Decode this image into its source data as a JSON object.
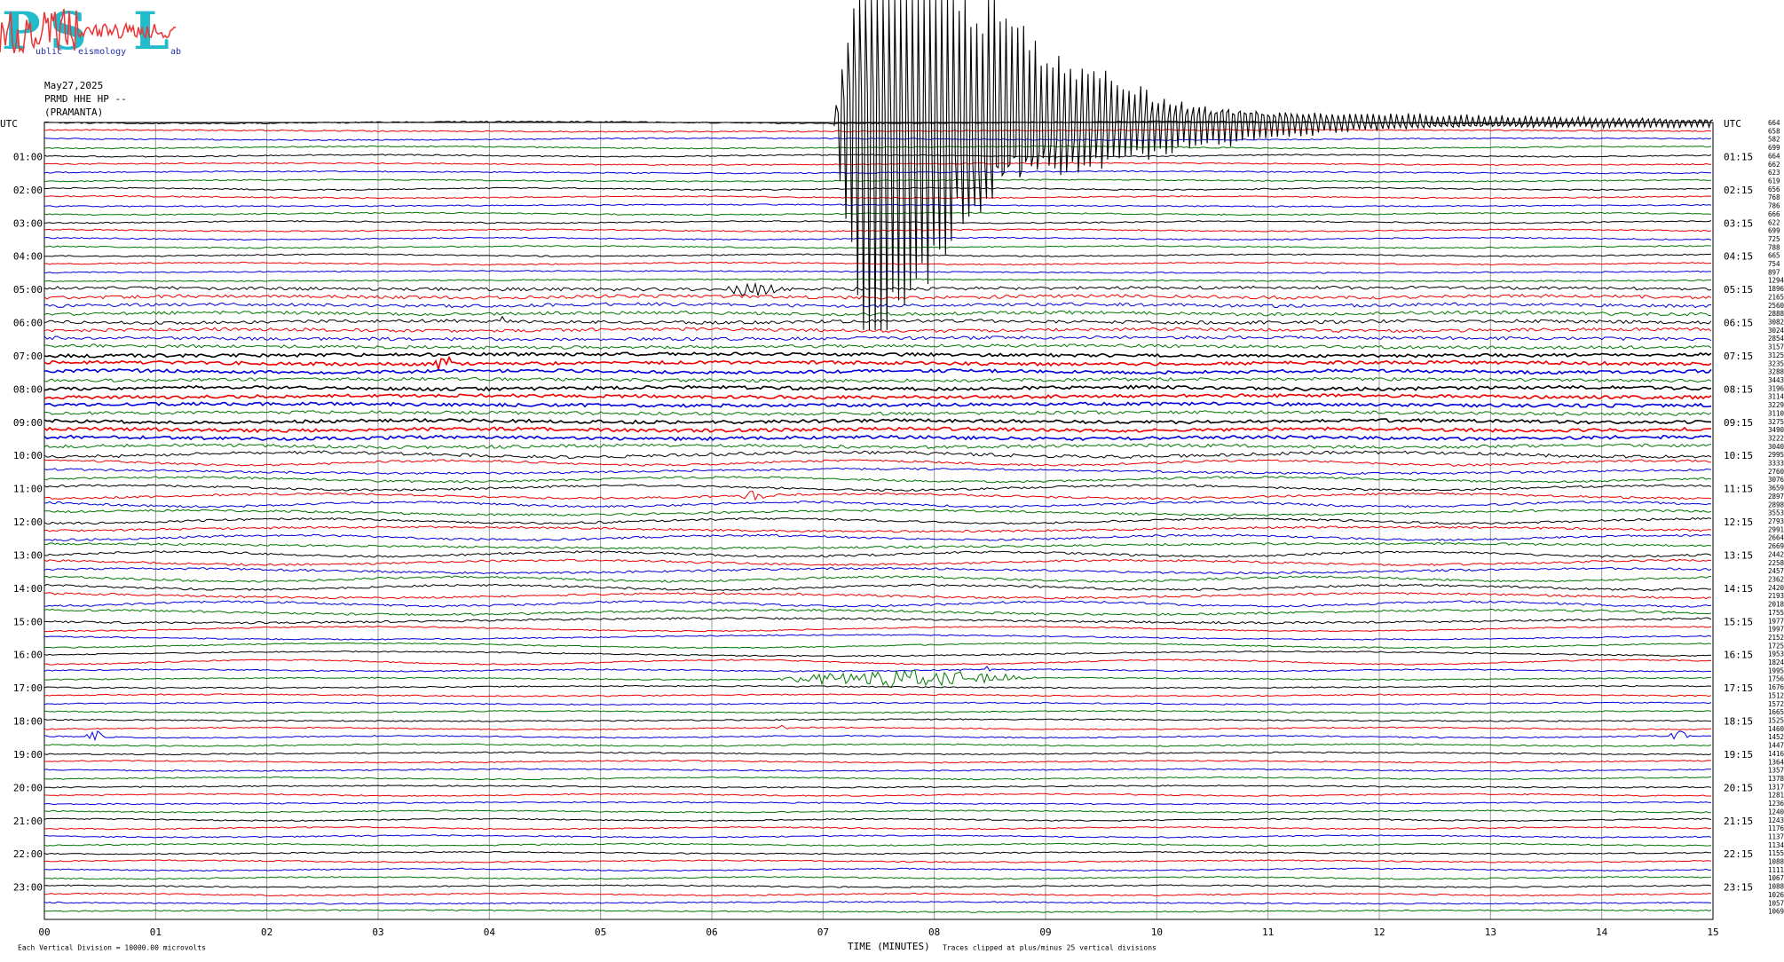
{
  "logo": {
    "letters": [
      "P",
      "S",
      "L"
    ],
    "words": [
      "ublic",
      "eismology",
      "ab"
    ]
  },
  "header": {
    "date": "May27,2025",
    "station": "PRMD HHE HP --",
    "site": "(PRAMANTA)"
  },
  "left_labels": [
    "UTC",
    "01:00",
    "02:00",
    "03:00",
    "04:00",
    "05:00",
    "06:00",
    "07:00",
    "08:00",
    "09:00",
    "10:00",
    "11:00",
    "12:00",
    "13:00",
    "14:00",
    "15:00",
    "16:00",
    "17:00",
    "18:00",
    "19:00",
    "20:00",
    "21:00",
    "22:00",
    "23:00"
  ],
  "right_labels": [
    "UTC",
    "01:15",
    "02:15",
    "03:15",
    "04:15",
    "05:15",
    "06:15",
    "07:15",
    "08:15",
    "09:15",
    "10:15",
    "11:15",
    "12:15",
    "13:15",
    "14:15",
    "15:15",
    "16:15",
    "17:15",
    "18:15",
    "19:15",
    "20:15",
    "21:15",
    "22:15",
    "23:15"
  ],
  "row_values": [
    664,
    658,
    582,
    699,
    664,
    662,
    623,
    619,
    656,
    768,
    786,
    666,
    622,
    699,
    725,
    788,
    665,
    754,
    897,
    1294,
    1896,
    2165,
    2560,
    2888,
    3082,
    3024,
    2854,
    3157,
    3125,
    3235,
    3288,
    3443,
    3196,
    3114,
    3229,
    3110,
    3275,
    3490,
    3222,
    3040,
    2995,
    3333,
    2760,
    3076,
    3659,
    2897,
    2898,
    3553,
    2793,
    2991,
    2664,
    2669,
    2442,
    2258,
    2457,
    2362,
    2420,
    2193,
    2018,
    1755,
    1977,
    1997,
    2152,
    1725,
    1953,
    1824,
    1995,
    1756,
    1676,
    1512,
    1572,
    1665,
    1525,
    1460,
    1452,
    1447,
    1416,
    1364,
    1357,
    1378,
    1317,
    1281,
    1236,
    1240,
    1243,
    1176,
    1137,
    1134,
    1155,
    1088,
    1111,
    1067,
    1088,
    1026,
    1057,
    1069
  ],
  "x_labels": [
    "00",
    "01",
    "02",
    "03",
    "04",
    "05",
    "06",
    "07",
    "08",
    "09",
    "10",
    "11",
    "12",
    "13",
    "14",
    "15"
  ],
  "footer": {
    "scale": "Each Vertical Division = 10000.00 microvolts",
    "axis": "TIME (MINUTES)",
    "clip": "Traces clipped at plus/minus 25 vertical divisions"
  }
}
